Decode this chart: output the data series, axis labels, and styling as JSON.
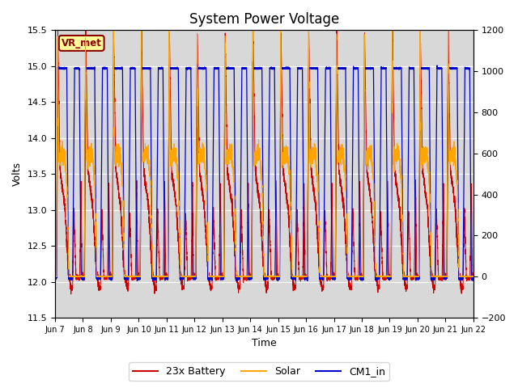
{
  "title": "System Power Voltage",
  "xlabel": "Time",
  "ylabel": "Volts",
  "ylim_left": [
    11.5,
    15.5
  ],
  "ylim_right": [
    -200,
    1200
  ],
  "yticks_left": [
    11.5,
    12.0,
    12.5,
    13.0,
    13.5,
    14.0,
    14.5,
    15.0,
    15.5
  ],
  "yticks_right": [
    -200,
    0,
    200,
    400,
    600,
    800,
    1000,
    1200
  ],
  "bg_color": "#d8d8d8",
  "fig_bg_color": "#ffffff",
  "line_colors": {
    "battery": "#cc0000",
    "solar": "#ffa500",
    "cm1": "#0000cc"
  },
  "legend_labels": [
    "23x Battery",
    "Solar",
    "CM1_in"
  ],
  "annotation_text": "VR_met",
  "annotation_bg": "#ffff99",
  "annotation_border": "#8B0000",
  "num_days": 15,
  "xtick_labels": [
    "Jun 7",
    "Jun 8",
    "Jun 9",
    "Jun 10",
    "Jun 11",
    "Jun 12",
    "Jun 13",
    "Jun 14",
    "Jun 15",
    "Jun 16",
    "Jun 17",
    "Jun 18",
    "Jun 19",
    "Jun 20",
    "Jun 21",
    "Jun 22"
  ],
  "title_fontsize": 12,
  "axis_fontsize": 9,
  "tick_fontsize": 8,
  "legend_fontsize": 9
}
